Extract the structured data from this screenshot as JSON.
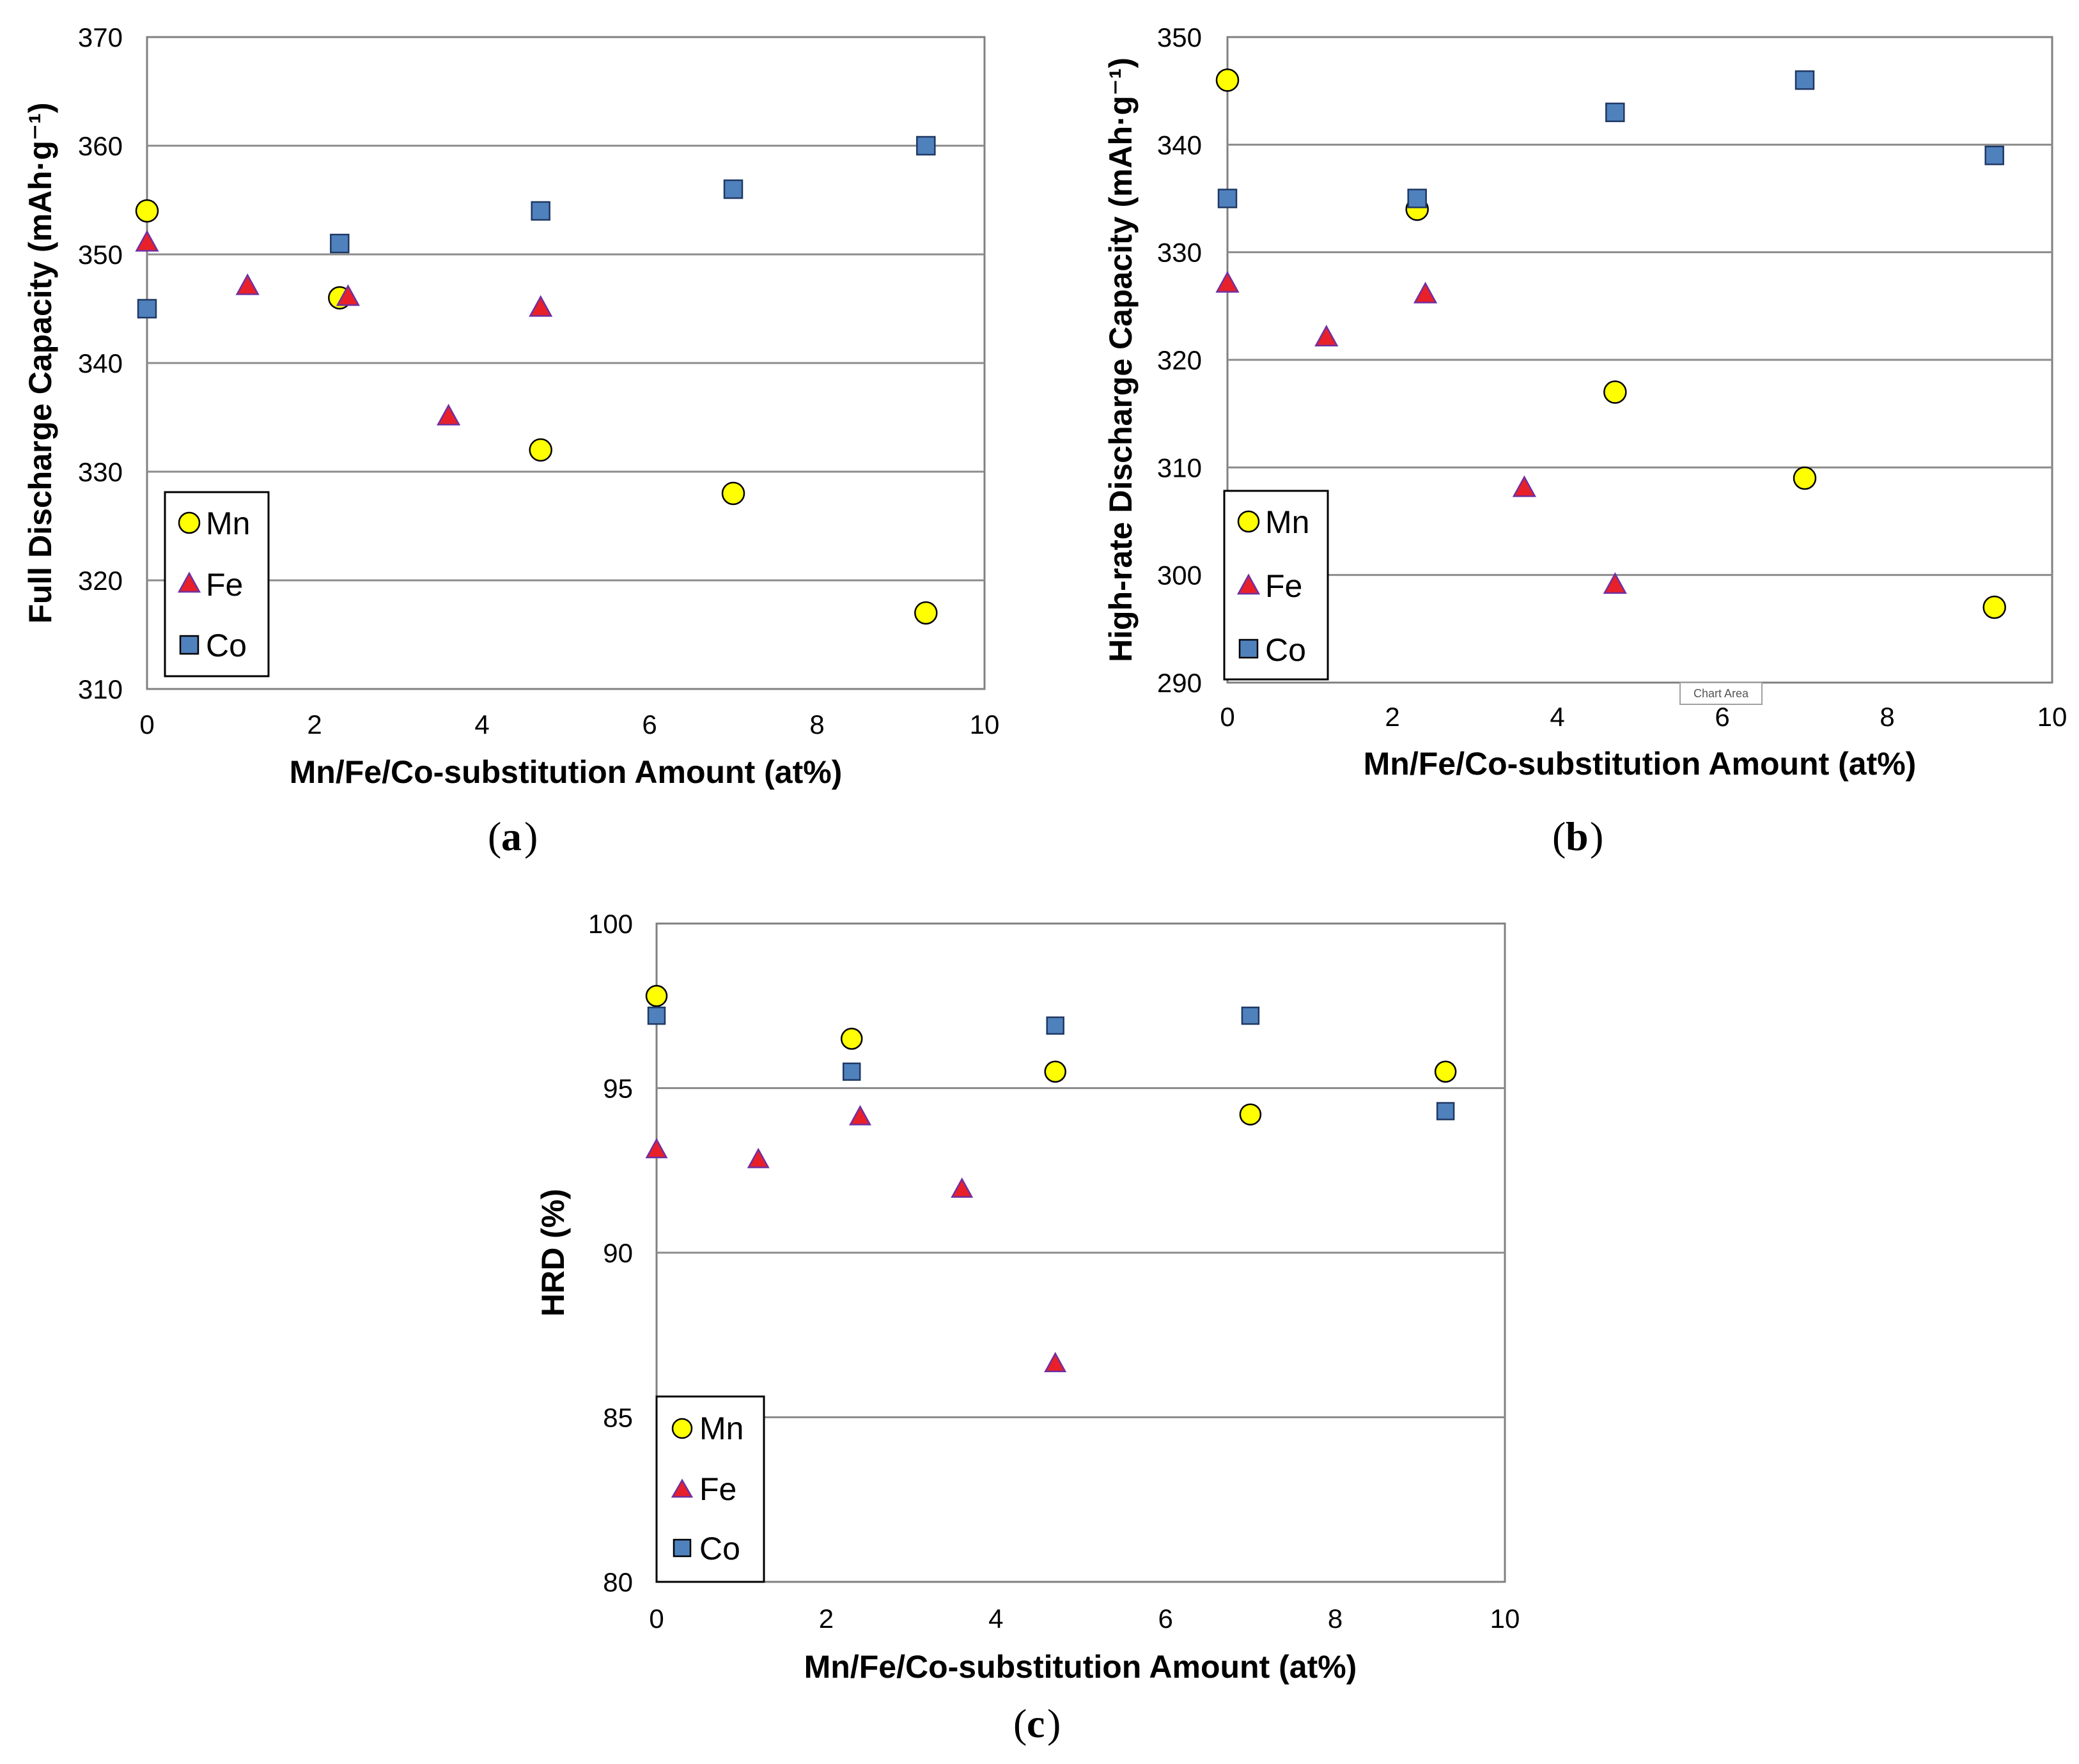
{
  "chart_data": [
    {
      "type": "scatter",
      "panel": "(a)",
      "panel_letter": "a",
      "title": "",
      "xlabel": "Mn/Fe/Co-substitution Amount (at%)",
      "ylabel": "Full Discharge Capacity (mAh·g⁻¹)",
      "xlim": [
        0,
        10
      ],
      "ylim": [
        310,
        370
      ],
      "xticks": [
        0,
        2,
        4,
        6,
        8,
        10
      ],
      "yticks": [
        310,
        320,
        330,
        340,
        350,
        360,
        370
      ],
      "grid": "horizontal",
      "legend": "bottom-left",
      "series": [
        {
          "name": "Mn",
          "marker": "circle",
          "color": "#FFFF00",
          "x": [
            0,
            2.3,
            4.7,
            7.0,
            9.3
          ],
          "y": [
            354,
            346,
            332,
            328,
            317
          ]
        },
        {
          "name": "Fe",
          "marker": "triangle",
          "color": "#E8202A",
          "x": [
            0,
            1.2,
            2.4,
            3.6,
            4.7
          ],
          "y": [
            351,
            347,
            346,
            335,
            345
          ]
        },
        {
          "name": "Co",
          "marker": "square",
          "color": "#4F81BD",
          "x": [
            0,
            2.3,
            4.7,
            7.0,
            9.3
          ],
          "y": [
            345,
            351,
            354,
            356,
            360
          ]
        }
      ]
    },
    {
      "type": "scatter",
      "panel": "(b)",
      "panel_letter": "b",
      "title": "",
      "xlabel": "Mn/Fe/Co-substitution Amount (at%)",
      "ylabel": "High-rate Discharge Capacity (mAh·g⁻¹)",
      "xlim": [
        0,
        10
      ],
      "ylim": [
        290,
        350
      ],
      "xticks": [
        0,
        2,
        4,
        6,
        8,
        10
      ],
      "yticks": [
        290,
        300,
        310,
        320,
        330,
        340,
        350
      ],
      "grid": "horizontal",
      "legend": "bottom-left",
      "tooltip": "Chart Area",
      "series": [
        {
          "name": "Mn",
          "marker": "circle",
          "color": "#FFFF00",
          "x": [
            0,
            2.3,
            4.7,
            7.0,
            9.3
          ],
          "y": [
            346,
            334,
            317,
            309,
            297
          ]
        },
        {
          "name": "Fe",
          "marker": "triangle",
          "color": "#E8202A",
          "x": [
            0,
            1.2,
            2.4,
            3.6,
            4.7
          ],
          "y": [
            327,
            322,
            326,
            308,
            299
          ]
        },
        {
          "name": "Co",
          "marker": "square",
          "color": "#4F81BD",
          "x": [
            0,
            2.3,
            4.7,
            7.0,
            9.3
          ],
          "y": [
            335,
            335,
            343,
            346,
            339
          ]
        }
      ]
    },
    {
      "type": "scatter",
      "panel": "(c)",
      "panel_letter": "c",
      "title": "",
      "xlabel": "Mn/Fe/Co-substitution Amount (at%)",
      "ylabel": "HRD (%)",
      "xlim": [
        0,
        10
      ],
      "ylim": [
        80,
        100
      ],
      "xticks": [
        0,
        2,
        4,
        6,
        8,
        10
      ],
      "yticks": [
        80,
        85,
        90,
        95,
        100
      ],
      "grid": "horizontal",
      "legend": "bottom-left",
      "series": [
        {
          "name": "Mn",
          "marker": "circle",
          "color": "#FFFF00",
          "x": [
            0,
            2.3,
            4.7,
            7.0,
            9.3
          ],
          "y": [
            97.8,
            96.5,
            95.5,
            94.2,
            95.5
          ]
        },
        {
          "name": "Fe",
          "marker": "triangle",
          "color": "#E8202A",
          "x": [
            0,
            1.2,
            2.4,
            3.6,
            4.7
          ],
          "y": [
            93.1,
            92.8,
            94.1,
            91.9,
            86.6
          ]
        },
        {
          "name": "Co",
          "marker": "square",
          "color": "#4F81BD",
          "x": [
            0,
            2.3,
            4.7,
            7.0,
            9.3
          ],
          "y": [
            97.2,
            95.5,
            96.9,
            97.2,
            94.3
          ]
        }
      ]
    }
  ]
}
